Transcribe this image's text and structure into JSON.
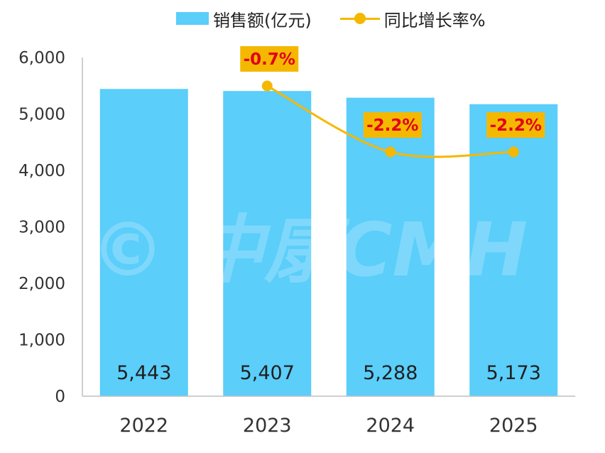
{
  "legend": {
    "bar_label": "销售额(亿元)",
    "line_label": "同比增长率%"
  },
  "watermark": "© 中康CMH",
  "colors": {
    "bar": "#5bcefa",
    "line": "#f5b800",
    "label_box": "#f5b800",
    "label_text": "#e0001a",
    "axis": "#bfbfbf",
    "tick_text": "#333333",
    "bar_label_text": "#1f1f1f"
  },
  "chart_data": {
    "type": "bar",
    "categories": [
      "2022",
      "2023",
      "2024",
      "2025"
    ],
    "series": [
      {
        "name": "销售额(亿元)",
        "type": "bar",
        "values": [
          5443,
          5407,
          5288,
          5173
        ],
        "labels": [
          "5,443",
          "5,407",
          "5,288",
          "5,173"
        ]
      },
      {
        "name": "同比增长率%",
        "type": "line",
        "values": [
          null,
          -0.7,
          -2.2,
          -2.2
        ],
        "labels": [
          "",
          "-0.7%",
          "-2.2%",
          "-2.2%"
        ]
      }
    ],
    "y_ticks": [
      "0",
      "1,000",
      "2,000",
      "3,000",
      "4,000",
      "5,000",
      "6,000"
    ],
    "ylim": [
      0,
      6000
    ],
    "grid": false,
    "legend_position": "top"
  }
}
